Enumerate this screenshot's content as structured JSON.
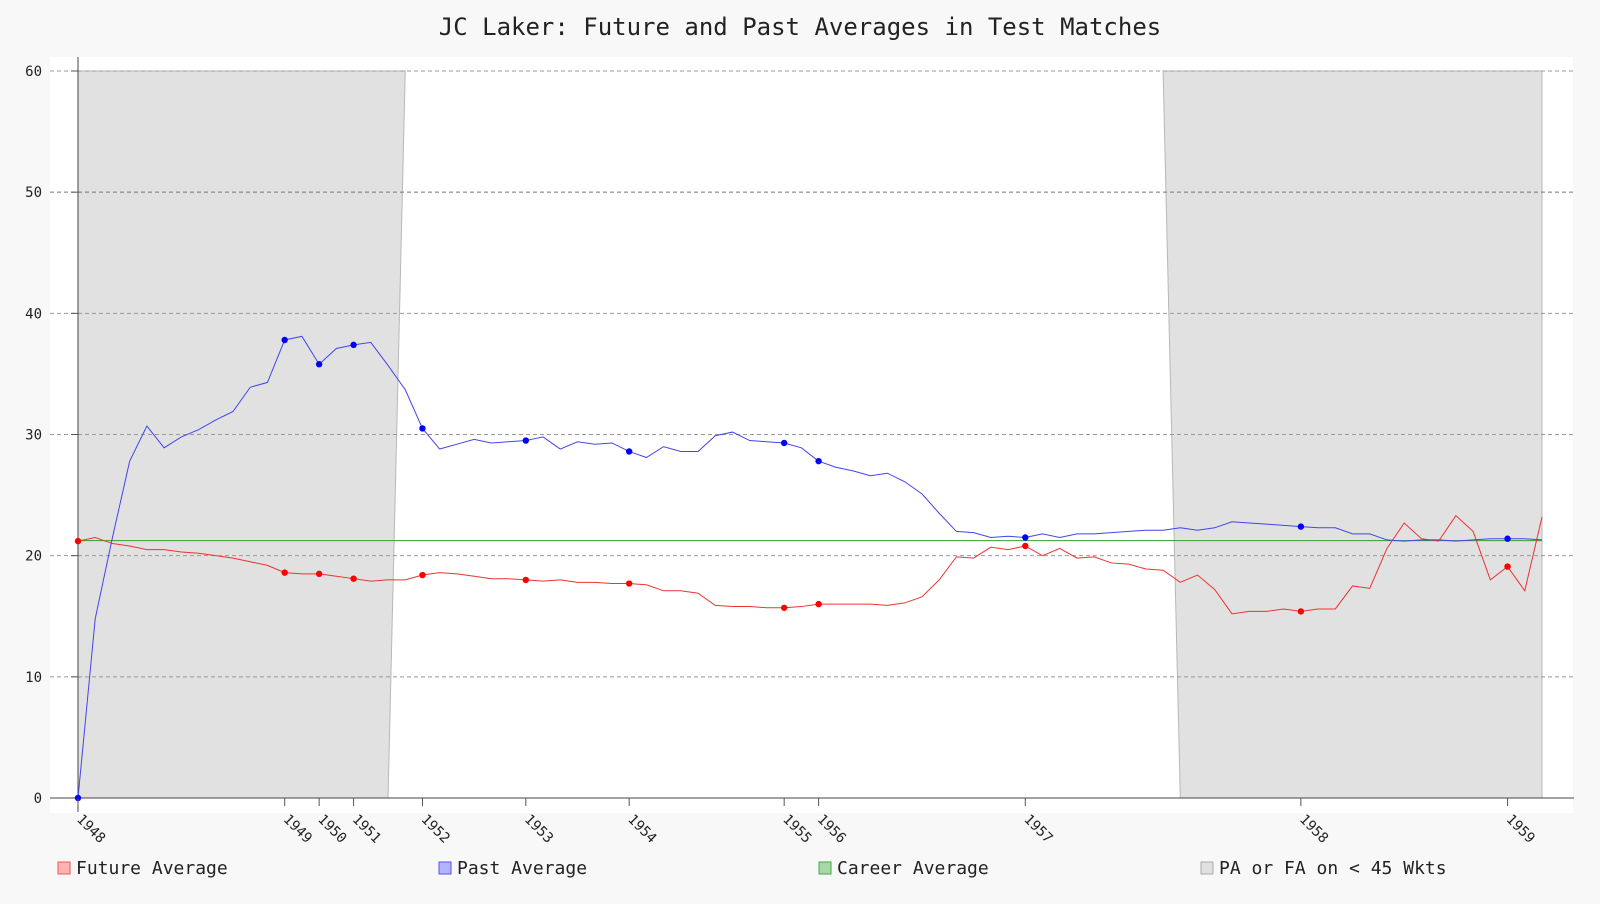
{
  "chart_data": {
    "type": "line",
    "title": "JC Laker: Future and Past Averages in Test Matches",
    "xlabel": "",
    "ylabel": "",
    "ylim": [
      0,
      60
    ],
    "yticks": [
      0,
      10,
      20,
      30,
      40,
      50,
      60
    ],
    "grid": true,
    "legend_placement": "bottom",
    "n_points": 86,
    "career_average": 21.24,
    "x_tick_labels": [
      {
        "label": "1948",
        "index": 0
      },
      {
        "label": "1949",
        "index": 12
      },
      {
        "label": "1950",
        "index": 14
      },
      {
        "label": "1951",
        "index": 16
      },
      {
        "label": "1952",
        "index": 20
      },
      {
        "label": "1953",
        "index": 26
      },
      {
        "label": "1954",
        "index": 32
      },
      {
        "label": "1955",
        "index": 41
      },
      {
        "label": "1956",
        "index": 43
      },
      {
        "label": "1957",
        "index": 55
      },
      {
        "label": "1958",
        "index": 71
      },
      {
        "label": "1959",
        "index": 83
      }
    ],
    "shaded_regions": [
      {
        "label": "PA or FA on < 45 Wkts",
        "from_index": 0,
        "to_index_top": 19,
        "to_index_bottom": 18
      },
      {
        "label": "PA or FA on < 45 Wkts",
        "from_index_top": 63,
        "from_index_bottom": 64,
        "to_index": 85
      }
    ],
    "series": [
      {
        "name": "Future Average",
        "color": "#ee3333",
        "marker_color": "#ff0000",
        "marker_indices": [
          0,
          12,
          14,
          16,
          20,
          26,
          32,
          41,
          43,
          55,
          71,
          83
        ],
        "values": [
          21.2,
          21.5,
          21.0,
          20.8,
          20.5,
          20.5,
          20.3,
          20.2,
          20.0,
          19.8,
          19.5,
          19.2,
          18.6,
          18.5,
          18.5,
          18.3,
          18.1,
          17.9,
          18.0,
          18.0,
          18.4,
          18.6,
          18.5,
          18.3,
          18.1,
          18.1,
          18.0,
          17.9,
          18.0,
          17.8,
          17.8,
          17.7,
          17.7,
          17.6,
          17.1,
          17.1,
          16.9,
          15.9,
          15.8,
          15.8,
          15.7,
          15.7,
          15.8,
          16.0,
          16.0,
          16.0,
          16.0,
          15.9,
          16.1,
          16.6,
          18.0,
          19.9,
          19.8,
          20.7,
          20.5,
          20.8,
          20.0,
          20.6,
          19.8,
          19.9,
          19.4,
          19.3,
          18.9,
          18.8,
          17.8,
          18.4,
          17.2,
          15.2,
          15.4,
          15.4,
          15.6,
          15.4,
          15.6,
          15.6,
          17.5,
          17.3,
          20.6,
          22.7,
          21.4,
          21.2,
          23.3,
          22.0,
          18.0,
          19.1,
          17.1,
          23.2
        ]
      },
      {
        "name": "Past Average",
        "color": "#4444ee",
        "marker_color": "#0000ff",
        "marker_indices": [
          0,
          12,
          14,
          16,
          20,
          26,
          32,
          41,
          43,
          55,
          71,
          83
        ],
        "values": [
          0.0,
          14.8,
          21.5,
          27.8,
          30.7,
          28.9,
          29.8,
          30.4,
          31.2,
          31.9,
          33.9,
          34.3,
          37.8,
          38.1,
          35.8,
          37.1,
          37.4,
          37.6,
          35.7,
          33.7,
          30.5,
          28.8,
          29.2,
          29.6,
          29.3,
          29.4,
          29.5,
          29.8,
          28.8,
          29.4,
          29.2,
          29.3,
          28.6,
          28.1,
          29.0,
          28.6,
          28.6,
          29.9,
          30.2,
          29.5,
          29.4,
          29.3,
          28.9,
          27.8,
          27.3,
          27.0,
          26.6,
          26.8,
          26.1,
          25.1,
          23.5,
          22.0,
          21.9,
          21.5,
          21.6,
          21.5,
          21.8,
          21.5,
          21.8,
          21.8,
          21.9,
          22.0,
          22.1,
          22.1,
          22.3,
          22.1,
          22.3,
          22.8,
          22.7,
          22.6,
          22.5,
          22.4,
          22.3,
          22.3,
          21.8,
          21.8,
          21.3,
          21.2,
          21.3,
          21.3,
          21.2,
          21.3,
          21.4,
          21.4,
          21.4,
          21.3
        ]
      },
      {
        "name": "Career Average",
        "color": "#33a02c",
        "values": "constant"
      }
    ],
    "legend": [
      {
        "label": "Future Average",
        "fill": "#ffb3b3",
        "stroke": "#ee5555"
      },
      {
        "label": "Past Average",
        "fill": "#b3b3ff",
        "stroke": "#5555ee"
      },
      {
        "label": "Career Average",
        "fill": "#a8d8a8",
        "stroke": "#44aa44"
      },
      {
        "label": "PA or FA on < 45 Wkts",
        "fill": "#e0e0e0",
        "stroke": "#aaaaaa"
      }
    ]
  }
}
